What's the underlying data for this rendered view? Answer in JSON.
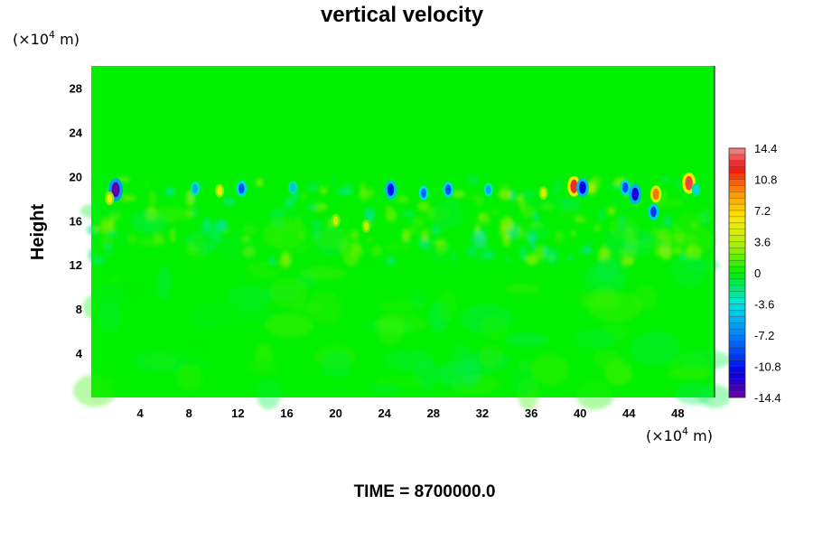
{
  "chart_data": {
    "type": "heatmap",
    "title": "vertical velocity",
    "ylabel": "Height",
    "y_unit_prefix": "(×10",
    "y_unit_exp": "4",
    "y_unit_suffix": " m)",
    "x_unit_prefix": "(×10",
    "x_unit_exp": "4",
    "x_unit_suffix": " m)",
    "time_label": "TIME = 8700000.0",
    "xlim": [
      0,
      51
    ],
    "ylim": [
      0,
      30
    ],
    "x_ticks": [
      "4",
      "8",
      "12",
      "16",
      "20",
      "24",
      "28",
      "32",
      "36",
      "40",
      "44",
      "48"
    ],
    "x_tick_values": [
      4,
      8,
      12,
      16,
      20,
      24,
      28,
      32,
      36,
      40,
      44,
      48
    ],
    "y_ticks": [
      "4",
      "8",
      "12",
      "16",
      "20",
      "24",
      "28"
    ],
    "y_tick_values": [
      4,
      8,
      12,
      16,
      20,
      24,
      28
    ],
    "colorbar": {
      "range": [
        -14.4,
        14.4
      ],
      "tick_labels": [
        "14.4",
        "10.8",
        "7.2",
        "3.6",
        "0",
        "-3.6",
        "-7.2",
        "-10.8",
        "-14.4"
      ],
      "tick_values": [
        14.4,
        10.8,
        7.2,
        3.6,
        0,
        -3.6,
        -7.2,
        -10.8,
        -14.4
      ],
      "levels": 40
    },
    "background_value": 0,
    "disturbed_layer": {
      "y_top": 20,
      "y_bottom": 15
    },
    "features": [
      {
        "x": 2.0,
        "y": 18.8,
        "value": -14.0
      },
      {
        "x": 8.5,
        "y": 18.9,
        "value": -6.0
      },
      {
        "x": 12.3,
        "y": 18.9,
        "value": -9.0
      },
      {
        "x": 16.5,
        "y": 19.0,
        "value": -5.0
      },
      {
        "x": 24.5,
        "y": 18.8,
        "value": -11.0
      },
      {
        "x": 27.2,
        "y": 18.5,
        "value": -8.0
      },
      {
        "x": 29.2,
        "y": 18.8,
        "value": -9.0
      },
      {
        "x": 32.5,
        "y": 18.8,
        "value": -6.0
      },
      {
        "x": 39.5,
        "y": 19.1,
        "value": 12.5
      },
      {
        "x": 40.2,
        "y": 19.0,
        "value": -11.5
      },
      {
        "x": 43.7,
        "y": 19.0,
        "value": -9.0
      },
      {
        "x": 44.5,
        "y": 18.4,
        "value": -12.0
      },
      {
        "x": 46.2,
        "y": 18.4,
        "value": 10.0
      },
      {
        "x": 46.0,
        "y": 16.8,
        "value": -9.5
      },
      {
        "x": 48.9,
        "y": 19.4,
        "value": 13.0
      },
      {
        "x": 49.5,
        "y": 18.8,
        "value": -4.0
      },
      {
        "x": 1.5,
        "y": 18.0,
        "value": 6.0
      },
      {
        "x": 10.5,
        "y": 18.7,
        "value": 5.5
      },
      {
        "x": 20.0,
        "y": 16.0,
        "value": 4.5
      },
      {
        "x": 22.5,
        "y": 15.5,
        "value": 4.0
      },
      {
        "x": 37.0,
        "y": 18.5,
        "value": 5.0
      }
    ]
  }
}
